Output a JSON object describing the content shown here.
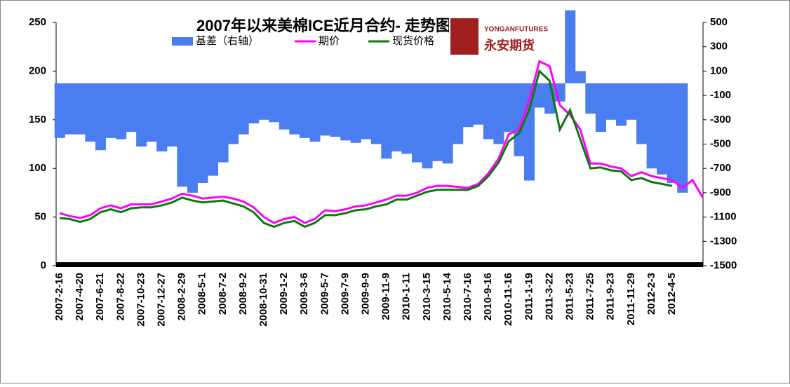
{
  "chart_data": {
    "type": "bar_line",
    "title": "2007年以来美棉ICE近月合约-             走势图",
    "logo": {
      "en": "YONGANFUTURES",
      "cn": "永安期货"
    },
    "categories": [
      "2007-2-16",
      null,
      "2007-4-20",
      null,
      "2007-6-21",
      null,
      "2007-8-22",
      null,
      "2007-10-23",
      null,
      "2007-12-27",
      null,
      "2008-2-29",
      null,
      "2008-5-1",
      null,
      "2008-7-2",
      null,
      "2008-9-2",
      null,
      "2008-10-31",
      null,
      "2009-1-2",
      null,
      "2009-3-6",
      null,
      "2009-5-7",
      null,
      "2009-7-9",
      null,
      "2009-9-9",
      null,
      "2009-11-9",
      null,
      "2010-1-11",
      null,
      "2010-3-15",
      null,
      "2010-5-14",
      null,
      "2010-7-16",
      null,
      "2010-9-16",
      null,
      "2010-11-16",
      null,
      "2011-1-19",
      null,
      "2011-3-22",
      null,
      "2011-5-23",
      null,
      "2011-7-25",
      null,
      "2011-9-23",
      null,
      "2011-11-29",
      null,
      "2012-2-3",
      null,
      "2012-4-5",
      null,
      null,
      null
    ],
    "series": [
      {
        "name": "基差（右轴）",
        "color": "#4a7ef0",
        "axis": "y2",
        "kind": "bar",
        "values": [
          -450,
          -420,
          -420,
          -480,
          -550,
          -450,
          -460,
          -400,
          -520,
          -480,
          -560,
          -520,
          -850,
          -900,
          -820,
          -760,
          -650,
          -500,
          -420,
          -330,
          -300,
          -320,
          -380,
          -420,
          -450,
          -480,
          -430,
          -440,
          -470,
          -490,
          -460,
          -500,
          -620,
          -560,
          -580,
          -650,
          -700,
          -640,
          -660,
          -500,
          -360,
          -340,
          -460,
          -500,
          -400,
          -600,
          -800,
          -200,
          -250,
          -150,
          600,
          100,
          -250,
          -400,
          -300,
          -350,
          -300,
          -500,
          -700,
          -750,
          -820,
          -900,
          null,
          null
        ]
      },
      {
        "name": "期价",
        "color": "#ff00ff",
        "kind": "line",
        "values": [
          54,
          51,
          49,
          52,
          59,
          62,
          59,
          63,
          63,
          63,
          66,
          69,
          74,
          72,
          69,
          70,
          71,
          69,
          66,
          60,
          50,
          44,
          48,
          50,
          44,
          48,
          57,
          56,
          58,
          61,
          62,
          65,
          68,
          72,
          72,
          75,
          80,
          82,
          82,
          81,
          80,
          84,
          95,
          110,
          135,
          140,
          170,
          210,
          205,
          165,
          155,
          140,
          105,
          105,
          102,
          100,
          92,
          96,
          92,
          90,
          88,
          80,
          88,
          70
        ]
      },
      {
        "name": "现货价格",
        "color": "#0a7a0a",
        "kind": "line",
        "values": [
          49,
          48,
          45,
          48,
          55,
          58,
          55,
          59,
          60,
          60,
          62,
          65,
          70,
          67,
          65,
          66,
          67,
          64,
          61,
          55,
          44,
          40,
          44,
          46,
          40,
          44,
          52,
          52,
          54,
          57,
          58,
          61,
          63,
          68,
          68,
          72,
          76,
          78,
          78,
          78,
          78,
          82,
          92,
          106,
          128,
          136,
          160,
          200,
          190,
          140,
          160,
          130,
          100,
          101,
          98,
          97,
          88,
          90,
          86,
          84,
          82,
          null,
          null,
          null
        ]
      }
    ],
    "ylim": [
      0,
      250
    ],
    "yticks": [
      0,
      50,
      100,
      150,
      200,
      250
    ],
    "y2lim": [
      -1500,
      500
    ],
    "y2ticks": [
      -1500,
      -1300,
      -1100,
      -900,
      -700,
      -500,
      -300,
      -100,
      100,
      300,
      500
    ]
  }
}
